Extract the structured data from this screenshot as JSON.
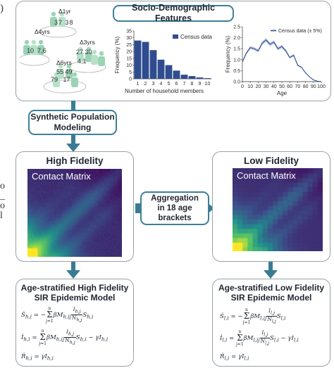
{
  "socio_title": "Socio-Demographic Features",
  "households": {
    "groups": [
      {
        "delta": "Δ1yr",
        "ages": [
          "37",
          "38"
        ]
      },
      {
        "delta": "Δ4yrs",
        "ages": [
          "10",
          "7",
          "6"
        ]
      },
      {
        "delta": "Δ3yrs",
        "ages": [
          "27",
          "30",
          "4",
          "1"
        ]
      },
      {
        "delta": "Δ6yrs",
        "ages": [
          "55",
          "49",
          "79",
          "17"
        ]
      }
    ]
  },
  "chart_data": [
    {
      "type": "bar",
      "ylabel": "Frequency (%)",
      "xlabel": "Number of household members",
      "legend": "Census data",
      "categories": [
        "1",
        "2",
        "3",
        "4",
        "5",
        "6",
        "7",
        "8",
        "9",
        "10"
      ],
      "values": [
        28,
        27,
        21,
        14,
        10,
        6,
        3,
        2,
        1,
        0.5
      ],
      "ylim": [
        0,
        35
      ],
      "yticks": [
        "0",
        "5",
        "10",
        "15",
        "20",
        "25",
        "30",
        "35"
      ]
    },
    {
      "type": "line",
      "ylabel": "Frequency (%)",
      "xlabel": "Age",
      "legend": "Census data (± 5%)",
      "x": [
        0,
        5,
        10,
        15,
        20,
        25,
        30,
        35,
        40,
        45,
        50,
        55,
        60,
        65,
        70,
        75,
        80,
        85,
        90,
        95,
        100
      ],
      "y": [
        0.9,
        1.3,
        1.55,
        1.5,
        1.4,
        1.75,
        1.9,
        1.7,
        1.8,
        1.5,
        1.6,
        1.4,
        1.1,
        1.2,
        0.75,
        0.65,
        0.4,
        0.22,
        0.08,
        0.02,
        0.0
      ],
      "ylim": [
        0,
        2.5
      ],
      "yticks": [
        "0.0",
        "0.5",
        "1.0",
        "1.5",
        "2.0",
        "2.5"
      ],
      "xticks": [
        "0",
        "10",
        "20",
        "30",
        "40",
        "50",
        "60",
        "70",
        "80",
        "90",
        "100"
      ]
    }
  ],
  "synthetic": {
    "line1": "Synthetic Population",
    "line2": "Modeling"
  },
  "high": {
    "title": "High Fidelity",
    "matrix_label": "Contact Matrix"
  },
  "low": {
    "title": "Low Fidelity",
    "matrix_label": "Contact Matrix"
  },
  "aggregation": {
    "line1": "Aggregation",
    "line2": "in 18 age",
    "line3": "brackets"
  },
  "model_high": {
    "title1": "Age-stratified High Fidelity",
    "title2": "SIR Epidemic Model"
  },
  "model_low": {
    "title1": "Age-stratified Low Fidelity",
    "title2": "SIR Epidemic Model"
  },
  "colors": {
    "accent": "#3d7f99",
    "arrow": "#3a7b94",
    "bar": "#2f4c8f",
    "line": "#2f4c8f",
    "band": "#b8c6e0",
    "person": "#9bd3b5",
    "person_dark": "#6fbf9c"
  }
}
